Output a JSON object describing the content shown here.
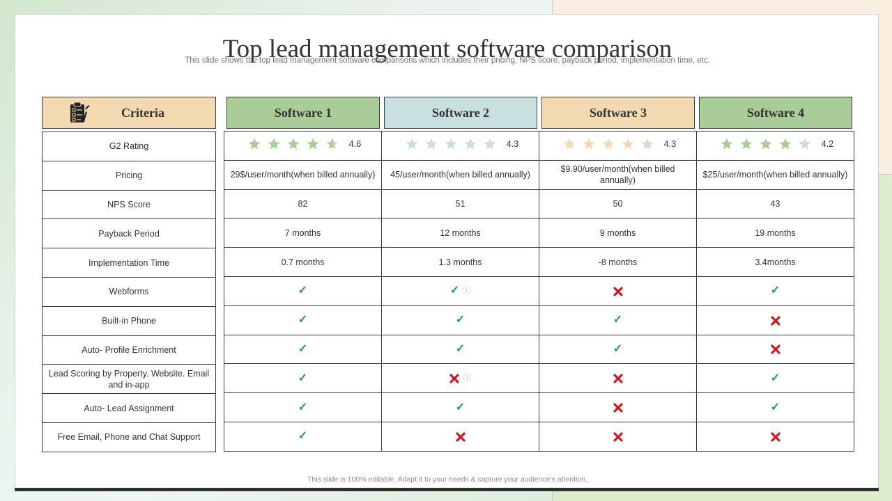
{
  "title": "Top lead management software comparison",
  "subtitle": "This slide shows the top lead management software comparisons which includes their pricing, NPS score, payback period, implementation time, etc.",
  "footer": "This slide is 100% editable. Adapt it to your needs & capture your audience’s attention.",
  "header": {
    "criteria_label": "Criteria",
    "criteria_icon": "clipboard-checklist-icon",
    "software": [
      {
        "label": "Software 1",
        "color": "#a9cc98"
      },
      {
        "label": "Software 2",
        "color": "#c9e0e0"
      },
      {
        "label": "Software 3",
        "color": "#f2d9b1"
      },
      {
        "label": "Software 4",
        "color": "#a9cc98"
      }
    ]
  },
  "criteria": [
    "G2 Rating",
    "Pricing",
    "NPS Score",
    "Payback Period",
    "Implementation Time",
    "Webforms",
    "Built-in Phone",
    "Auto- Profile Enrichment",
    "Lead Scoring by Property. Website. Email and in-app",
    "Auto- Lead Assignment",
    "Free Email, Phone and Chat Support"
  ],
  "ratings": [
    {
      "value": "4.6",
      "stars": 4.6,
      "color": "#a9cc98"
    },
    {
      "value": "4.3",
      "stars": 4.3,
      "color": "#c9e0e0"
    },
    {
      "value": "4.3",
      "stars": 4.3,
      "color": "#f2d9b1"
    },
    {
      "value": "4.2",
      "stars": 4.2,
      "color": "#a9cc98"
    }
  ],
  "star_empty_color": "#d9d9d9",
  "text_rows": [
    [
      "29$/user/month(when  billed annually)",
      "45/user/month(when  billed annually)",
      "$9.90/user/month(when  billed annually)",
      "$25/user/month(when  billed annually)"
    ],
    [
      "82",
      "51",
      "50",
      "43"
    ],
    [
      "7 months",
      "12 months",
      "9 months",
      "19 months"
    ],
    [
      "0.7 months",
      "1.3 months",
      "-8 months",
      "3.4months"
    ]
  ],
  "feature_rows": [
    [
      "check",
      "check-info",
      "cross",
      "check"
    ],
    [
      "check",
      "check",
      "check",
      "cross"
    ],
    [
      "check",
      "check",
      "check",
      "cross"
    ],
    [
      "check",
      "cross-info",
      "cross",
      "check"
    ],
    [
      "check",
      "check",
      "cross",
      "check"
    ],
    [
      "check",
      "cross",
      "cross",
      "cross"
    ]
  ],
  "symbols": {
    "check": "✓",
    "info": "ⓘ"
  },
  "colors": {
    "check": "#1f9e4a",
    "cross": "#d0161e"
  }
}
